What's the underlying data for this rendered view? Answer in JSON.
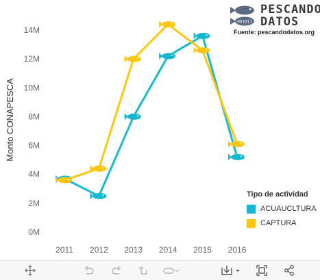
{
  "chart_data": {
    "type": "line",
    "categories": [
      "2011",
      "2012",
      "2013",
      "2014",
      "2015",
      "2016"
    ],
    "series": [
      {
        "name": "ACUAUCLTURA",
        "color": "#17b8cf",
        "values": [
          3.7,
          2.5,
          8.0,
          12.2,
          13.6,
          5.2
        ]
      },
      {
        "name": "CAPTURA",
        "color": "#fcc60e",
        "values": [
          3.6,
          4.4,
          12.0,
          14.4,
          12.6,
          6.1
        ]
      }
    ],
    "ylabel": "Monto CONAPESCA",
    "xlabel": "",
    "ylim": [
      0,
      15
    ],
    "yticks": [
      0,
      2,
      4,
      6,
      8,
      10,
      12,
      14
    ],
    "ytick_labels": [
      "0M",
      "2M",
      "4M",
      "6M",
      "8M",
      "10M",
      "12M",
      "14M"
    ],
    "grid": false,
    "marker": "fish",
    "legend": {
      "title": "Tipo de actividad",
      "placement": "bottom-right"
    }
  },
  "logo": {
    "line1": "PESCANDO",
    "line2": "DATOS",
    "fish_code": "001011",
    "source": "Fuente: pescandodatos.org"
  },
  "toolbar": {
    "icons": [
      "move-icon",
      "undo-icon",
      "redo-icon",
      "revert-icon",
      "pause-icon",
      "download-icon",
      "fullscreen-icon",
      "share-icon"
    ]
  }
}
